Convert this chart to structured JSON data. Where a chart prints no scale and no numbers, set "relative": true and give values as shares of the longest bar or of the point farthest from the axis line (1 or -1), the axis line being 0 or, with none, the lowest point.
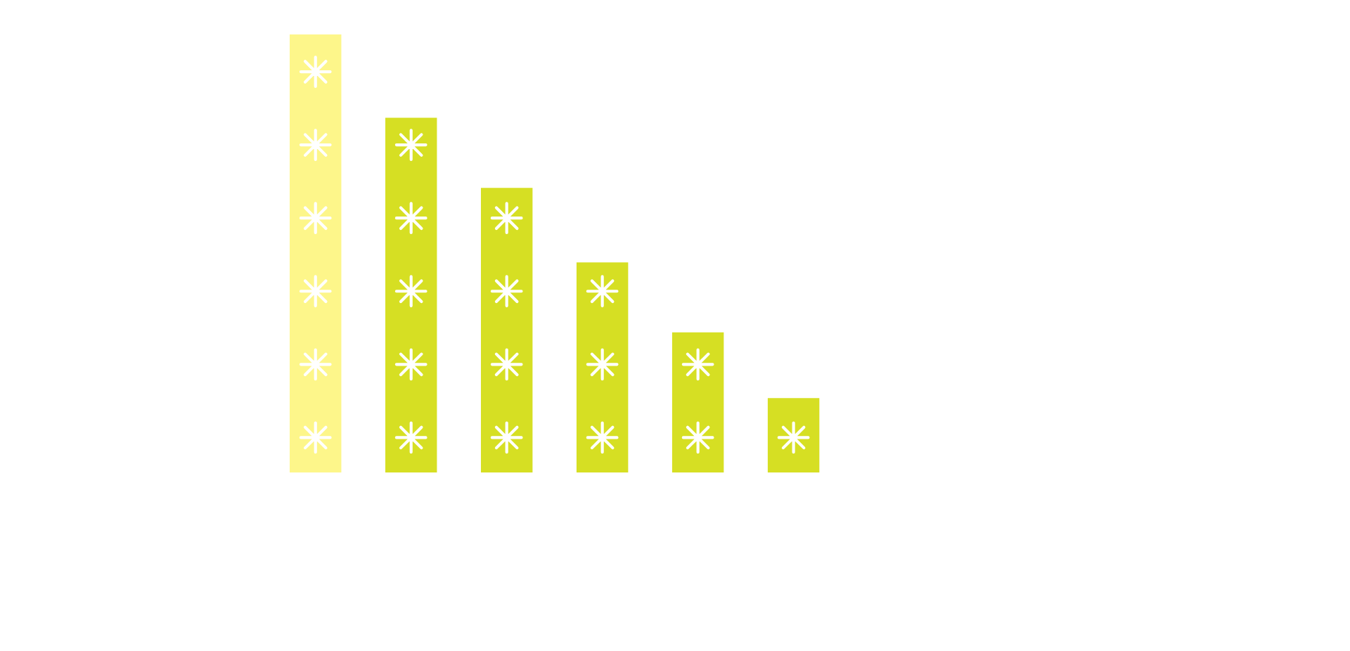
{
  "chart_data": {
    "type": "bar",
    "relative": true,
    "categories": [
      null,
      null,
      null,
      null,
      null,
      null
    ],
    "values": [
      1,
      0.81,
      0.65,
      0.48,
      0.32,
      0.17
    ],
    "colors": [
      "#fdf68a",
      "#d6df23",
      "#d6df23",
      "#d6df23",
      "#d6df23",
      "#d6df23"
    ]
  }
}
